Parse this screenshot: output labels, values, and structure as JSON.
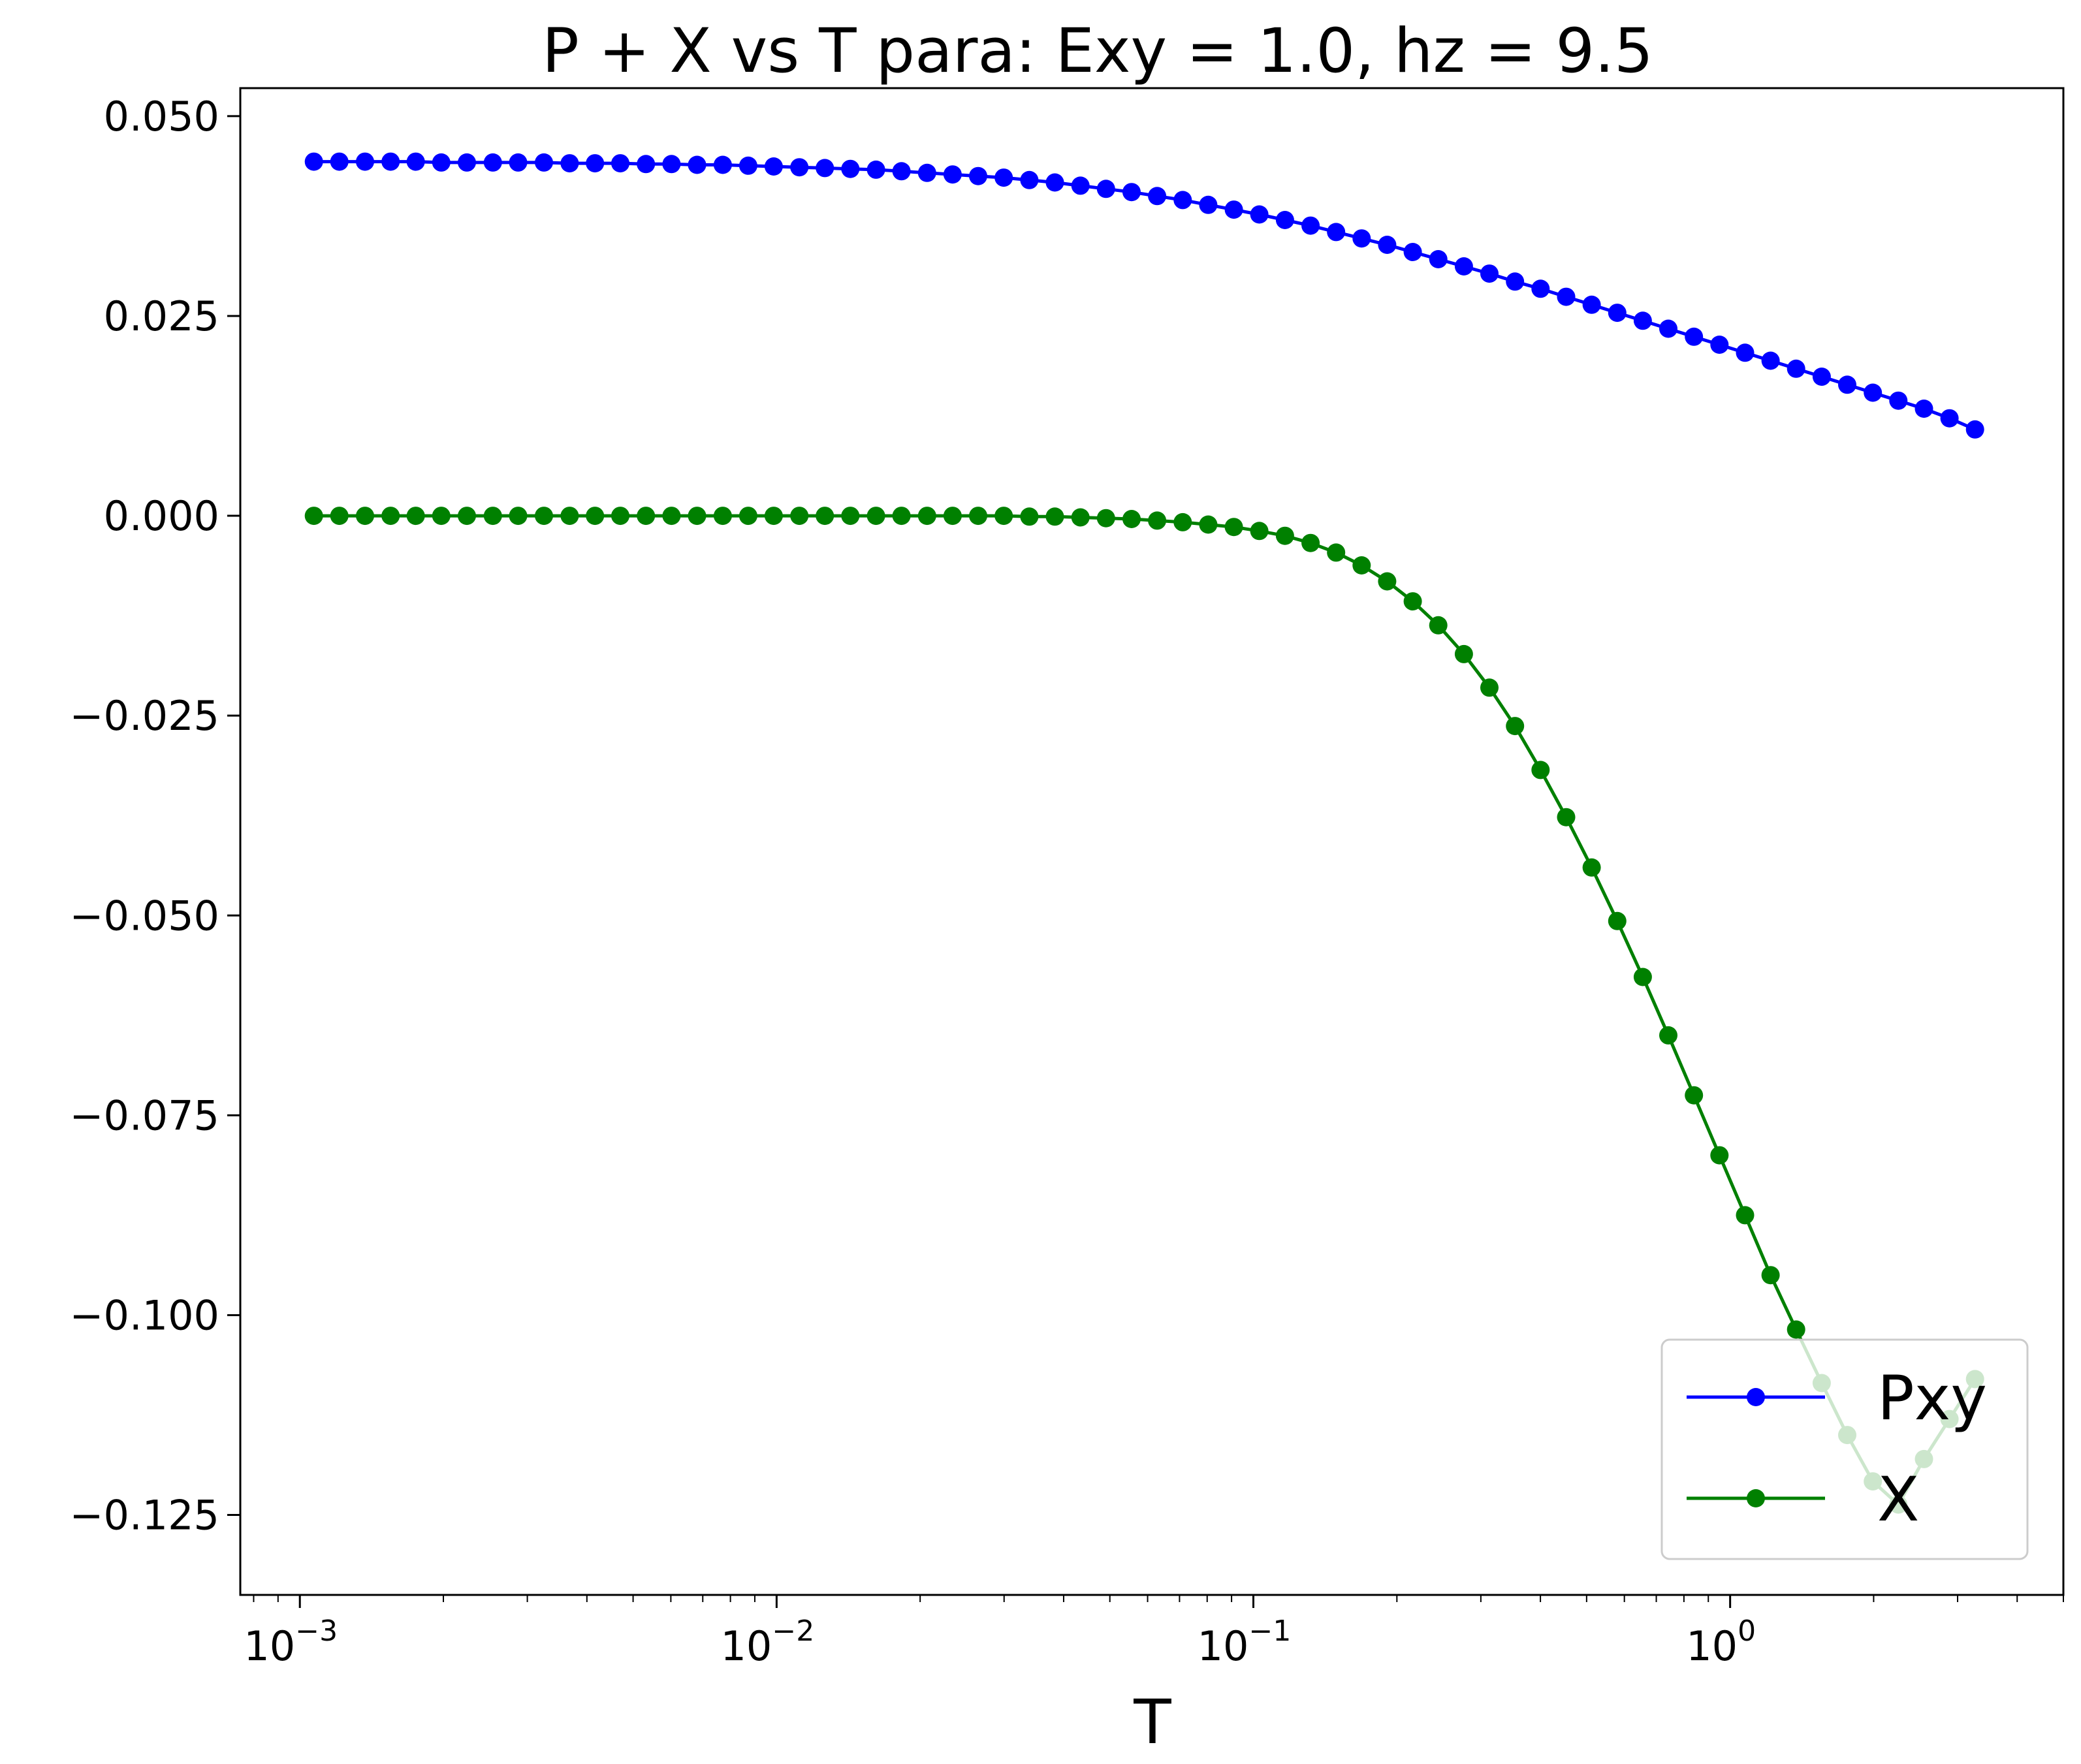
{
  "chart_data": {
    "type": "line",
    "title": "P + X vs T para: Exy = 1.0, hz = 9.5",
    "xlabel": "T",
    "ylabel": "",
    "xscale": "log",
    "xlim": [
      0.00075,
      5.0
    ],
    "ylim": [
      -0.135,
      0.0535
    ],
    "grid": false,
    "legend_position": "lower-right",
    "x_ticks": [
      {
        "value": 0.001,
        "base": "10",
        "exp": "−3"
      },
      {
        "value": 0.01,
        "base": "10",
        "exp": "−2"
      },
      {
        "value": 0.1,
        "base": "10",
        "exp": "−1"
      },
      {
        "value": 1,
        "base": "10",
        "exp": "0"
      }
    ],
    "y_ticks": [
      {
        "value": 0.05,
        "label": "0.050"
      },
      {
        "value": 0.025,
        "label": "0.025"
      },
      {
        "value": 0.0,
        "label": "0.000"
      },
      {
        "value": -0.025,
        "label": "−0.025"
      },
      {
        "value": -0.05,
        "label": "−0.050"
      },
      {
        "value": -0.075,
        "label": "−0.075"
      },
      {
        "value": -0.1,
        "label": "−0.100"
      },
      {
        "value": -0.125,
        "label": "−0.125"
      }
    ],
    "x": [
      0.00107,
      0.00121,
      0.00137,
      0.00155,
      0.00175,
      0.00198,
      0.00224,
      0.00254,
      0.00287,
      0.00325,
      0.00368,
      0.00416,
      0.0047,
      0.00532,
      0.00602,
      0.00681,
      0.00771,
      0.00872,
      0.00986,
      0.01116,
      0.01262,
      0.01428,
      0.01616,
      0.01828,
      0.02068,
      0.0234,
      0.02647,
      0.02995,
      0.03389,
      0.03834,
      0.04338,
      0.04908,
      0.05553,
      0.06283,
      0.07108,
      0.08042,
      0.09099,
      0.1029,
      0.1165,
      0.1318,
      0.1491,
      0.1687,
      0.1908,
      0.2159,
      0.2443,
      0.2764,
      0.3127,
      0.3538,
      0.4003,
      0.4529,
      0.5124,
      0.5797,
      0.6558,
      0.742,
      0.8395,
      0.9498,
      1.0746,
      1.2158,
      1.3755,
      1.5562,
      1.7607,
      1.992,
      2.2537,
      2.5498,
      2.8848,
      3.2638
    ],
    "series": [
      {
        "name": "Pxy",
        "color": "#0000ff",
        "values": [
          0.0443,
          0.0443,
          0.0443,
          0.0443,
          0.0443,
          0.0442,
          0.0442,
          0.0442,
          0.0442,
          0.0442,
          0.0441,
          0.0441,
          0.0441,
          0.044,
          0.044,
          0.0439,
          0.0439,
          0.0438,
          0.0437,
          0.0436,
          0.0435,
          0.0434,
          0.0433,
          0.0431,
          0.0429,
          0.0427,
          0.0425,
          0.0423,
          0.042,
          0.0417,
          0.0413,
          0.0409,
          0.0405,
          0.04,
          0.0395,
          0.0389,
          0.0383,
          0.0377,
          0.037,
          0.0363,
          0.0355,
          0.0347,
          0.0339,
          0.033,
          0.0321,
          0.0312,
          0.0303,
          0.0293,
          0.0284,
          0.0274,
          0.0264,
          0.0254,
          0.0244,
          0.0234,
          0.0224,
          0.0214,
          0.0204,
          0.0194,
          0.0184,
          0.0174,
          0.0164,
          0.0154,
          0.0144,
          0.0134,
          0.0122,
          0.0108
        ]
      },
      {
        "name": "X",
        "color": "#008000",
        "values": [
          0.0,
          0.0,
          0.0,
          0.0,
          0.0,
          0.0,
          0.0,
          0.0,
          0.0,
          0.0,
          0.0,
          0.0,
          0.0,
          0.0,
          0.0,
          0.0,
          0.0,
          0.0,
          0.0,
          0.0,
          0.0,
          0.0,
          0.0,
          0.0,
          0.0,
          0.0,
          0.0,
          0.0,
          -0.0001,
          -0.0001,
          -0.0002,
          -0.0003,
          -0.0004,
          -0.0006,
          -0.0008,
          -0.0011,
          -0.0014,
          -0.0019,
          -0.0025,
          -0.0034,
          -0.0046,
          -0.0062,
          -0.0082,
          -0.0107,
          -0.0137,
          -0.0173,
          -0.0215,
          -0.0263,
          -0.0318,
          -0.0377,
          -0.044,
          -0.0507,
          -0.0577,
          -0.065,
          -0.0725,
          -0.08,
          -0.0875,
          -0.095,
          -0.1018,
          -0.1085,
          -0.115,
          -0.1208,
          -0.1237,
          -0.118,
          -0.113,
          -0.108
        ]
      }
    ]
  }
}
